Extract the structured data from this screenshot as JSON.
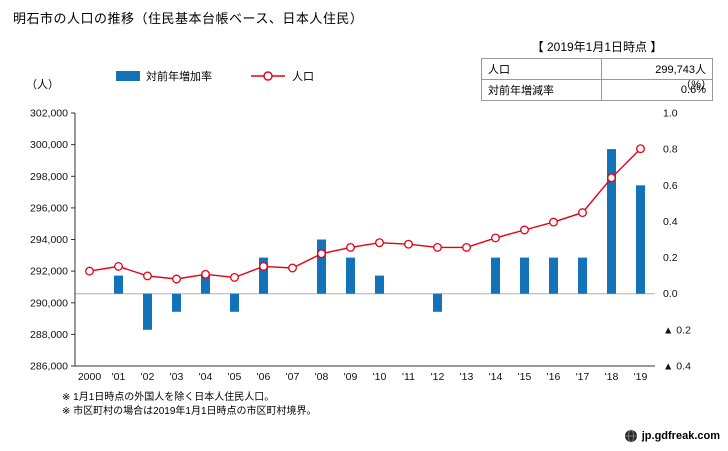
{
  "title": "明石市の人口の推移（住民基本台帳ベース、日本人住民）",
  "legend": {
    "bars": "対前年増加率",
    "line": "人口"
  },
  "axis_units": {
    "left": "（人）",
    "right": "（%）"
  },
  "info_box": {
    "header": "【 2019年1月1日時点 】",
    "rows": [
      {
        "label": "人口",
        "value": "299,743人"
      },
      {
        "label": "対前年増減率",
        "value": "0.6%"
      }
    ]
  },
  "footnotes": [
    "※ 1月1日時点の外国人を除く日本人住民人口。",
    "※ 市区町村の場合は2019年1月1日時点の市区町村境界。"
  ],
  "watermark": {
    "icon": "globe-icon",
    "text": "jp.gdfreak.com"
  },
  "colors": {
    "bar": "#1473b8",
    "line": "#e60012",
    "zero_line": "#b0b0b0",
    "axis": "#333333",
    "tick_text": "#111111"
  },
  "chart_data": {
    "type": "bar+line",
    "title": "明石市の人口の推移（住民基本台帳ベース、日本人住民）",
    "categories": [
      "2000",
      "'01",
      "'02",
      "'03",
      "'04",
      "'05",
      "'06",
      "'07",
      "'08",
      "'09",
      "'10",
      "'11",
      "'12",
      "'13",
      "'14",
      "'15",
      "'16",
      "'17",
      "'18",
      "'19"
    ],
    "series": [
      {
        "name": "対前年増加率",
        "type": "bar",
        "axis": "right",
        "unit": "%",
        "values": [
          null,
          0.1,
          -0.2,
          -0.1,
          0.1,
          -0.1,
          0.2,
          0.0,
          0.3,
          0.2,
          0.1,
          0.0,
          -0.1,
          0.0,
          0.2,
          0.2,
          0.2,
          0.2,
          0.8,
          0.6
        ]
      },
      {
        "name": "人口",
        "type": "line",
        "axis": "left",
        "unit": "人",
        "values": [
          292000,
          292300,
          291700,
          291500,
          291800,
          291600,
          292300,
          292200,
          293100,
          293500,
          293800,
          293700,
          293500,
          293500,
          294100,
          294600,
          295100,
          295700,
          297900,
          299743
        ]
      }
    ],
    "left_axis": {
      "min": 286000,
      "max": 302000,
      "tick_step": 2000,
      "tick_labels": [
        "302,000",
        "300,000",
        "298,000",
        "296,000",
        "294,000",
        "292,000",
        "290,000",
        "288,000",
        "286,000"
      ]
    },
    "right_axis": {
      "min": -0.4,
      "max": 1.0,
      "tick_step": 0.2,
      "tick_labels": [
        "1.0",
        "0.8",
        "0.6",
        "0.4",
        "0.2",
        "0.0",
        "▲ 0.2",
        "▲ 0.4"
      ]
    },
    "grid": false,
    "zero_line": true,
    "legend_position": "top"
  }
}
